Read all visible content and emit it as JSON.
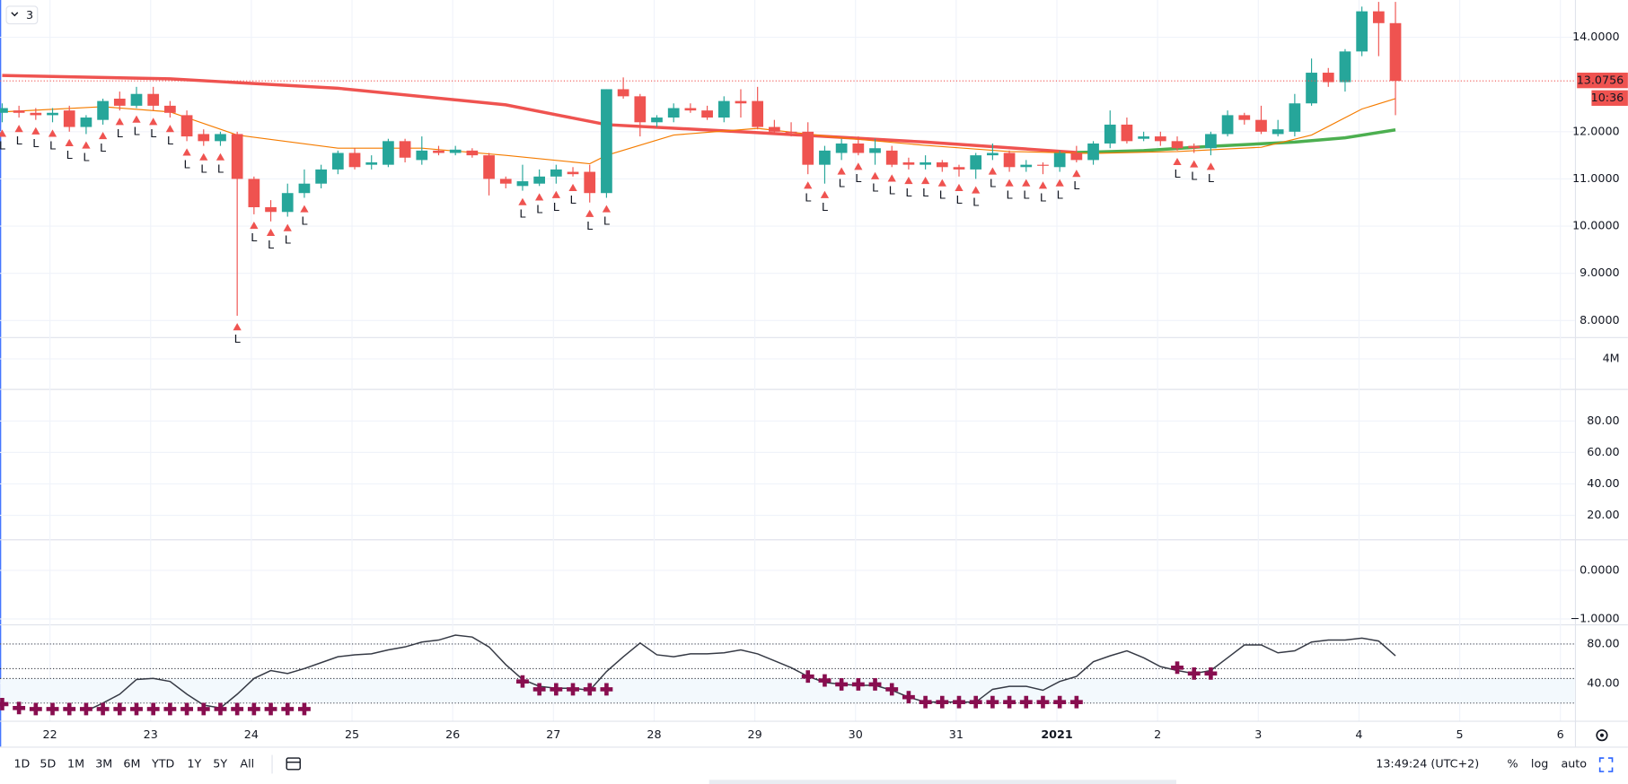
{
  "range_button": "3",
  "price_pane": {
    "ylim": [
      7.65,
      14.79
    ],
    "yticks": [
      {
        "value": 14,
        "label": "14.0000"
      },
      {
        "value": 12,
        "label": "12.0000"
      },
      {
        "value": 11,
        "label": "11.0000"
      },
      {
        "value": 10,
        "label": "10.0000"
      },
      {
        "value": 9,
        "label": "9.0000"
      },
      {
        "value": 8,
        "label": "8.0000"
      }
    ],
    "up_color": "#26a69a",
    "down_color": "#ef5350",
    "candles": {
      "open": [
        12.4,
        12.45,
        12.4,
        12.35,
        12.45,
        12.1,
        12.25,
        12.7,
        12.55,
        12.8,
        12.55,
        12.35,
        11.95,
        11.8,
        11.95,
        11.0,
        10.4,
        10.3,
        10.7,
        10.9,
        11.2,
        11.55,
        11.3,
        11.3,
        11.8,
        11.4,
        11.6,
        11.55,
        11.6,
        11.5,
        11.0,
        10.85,
        10.9,
        11.05,
        11.15,
        11.15,
        10.7,
        12.9,
        12.75,
        12.2,
        12.3,
        12.5,
        12.45,
        12.3,
        12.65,
        12.65,
        12.1,
        12.0,
        12.0,
        11.3,
        11.55,
        11.75,
        11.55,
        11.6,
        11.35,
        11.3,
        11.35,
        11.25,
        11.2,
        11.5,
        11.55,
        11.25,
        11.3,
        11.25,
        11.55,
        11.4,
        11.75,
        12.15,
        11.85,
        11.9,
        11.8,
        11.7,
        11.65,
        11.95,
        12.35,
        12.25,
        11.95,
        12.0,
        12.6,
        13.25,
        13.05,
        13.7,
        14.55,
        14.3
      ],
      "high": [
        12.6,
        12.55,
        12.5,
        12.5,
        12.55,
        12.35,
        12.7,
        12.85,
        12.95,
        12.95,
        12.65,
        12.45,
        12.05,
        12.0,
        12.0,
        11.05,
        10.55,
        10.9,
        11.2,
        11.3,
        11.6,
        11.65,
        11.5,
        11.85,
        11.85,
        11.9,
        11.7,
        11.7,
        11.65,
        11.55,
        11.05,
        11.3,
        11.2,
        11.3,
        11.25,
        11.3,
        12.9,
        13.15,
        12.8,
        12.35,
        12.6,
        12.6,
        12.55,
        12.75,
        12.9,
        12.95,
        12.25,
        12.2,
        12.2,
        11.7,
        11.85,
        11.9,
        11.85,
        11.7,
        11.45,
        11.5,
        11.4,
        11.3,
        11.55,
        11.75,
        11.6,
        11.4,
        11.35,
        11.6,
        11.7,
        11.8,
        12.45,
        12.3,
        12.0,
        12.0,
        11.9,
        11.75,
        12.0,
        12.45,
        12.4,
        12.55,
        12.25,
        12.8,
        13.55,
        13.35,
        13.75,
        14.65,
        14.75,
        14.75
      ],
      "low": [
        12.2,
        12.3,
        12.25,
        12.2,
        12.0,
        11.95,
        12.15,
        12.45,
        12.5,
        12.45,
        12.3,
        11.8,
        11.7,
        11.7,
        8.1,
        10.25,
        10.1,
        10.2,
        10.6,
        10.8,
        11.1,
        11.2,
        11.2,
        11.25,
        11.35,
        11.3,
        11.5,
        11.5,
        11.45,
        10.65,
        10.8,
        10.75,
        10.85,
        10.9,
        11.05,
        10.5,
        10.6,
        12.7,
        11.9,
        12.1,
        12.2,
        12.4,
        12.25,
        12.2,
        12.3,
        12.05,
        11.95,
        11.9,
        11.1,
        10.9,
        11.4,
        11.5,
        11.3,
        11.25,
        11.2,
        11.2,
        11.15,
        11.05,
        11.0,
        11.4,
        11.15,
        11.15,
        11.1,
        11.15,
        11.35,
        11.3,
        11.65,
        11.75,
        11.8,
        11.7,
        11.6,
        11.55,
        11.5,
        11.9,
        12.15,
        11.95,
        11.9,
        11.9,
        12.55,
        12.95,
        12.85,
        13.6,
        13.6,
        12.35
      ],
      "close": [
        12.5,
        12.4,
        12.35,
        12.4,
        12.1,
        12.3,
        12.65,
        12.55,
        12.8,
        12.55,
        12.4,
        11.9,
        11.8,
        11.95,
        11.0,
        10.4,
        10.3,
        10.7,
        10.9,
        11.2,
        11.55,
        11.25,
        11.35,
        11.8,
        11.45,
        11.6,
        11.55,
        11.62,
        11.5,
        11.0,
        10.9,
        10.95,
        11.05,
        11.2,
        11.1,
        10.7,
        12.9,
        12.75,
        12.2,
        12.3,
        12.5,
        12.45,
        12.3,
        12.65,
        12.6,
        12.1,
        12.0,
        11.98,
        11.3,
        11.6,
        11.75,
        11.55,
        11.65,
        11.3,
        11.3,
        11.35,
        11.25,
        11.2,
        11.5,
        11.55,
        11.25,
        11.3,
        11.28,
        11.55,
        11.4,
        11.75,
        12.15,
        11.8,
        11.9,
        11.8,
        11.65,
        11.65,
        11.95,
        12.35,
        12.25,
        12.0,
        12.05,
        12.6,
        13.25,
        13.05,
        13.7,
        14.55,
        14.3,
        13.0756
      ]
    },
    "ma_slow": [
      {
        "color": "#ef5350",
        "x": [
          0,
          10,
          20,
          30,
          36,
          45,
          55,
          64
        ],
        "values": [
          13.19,
          13.12,
          12.92,
          12.57,
          12.15,
          11.98,
          11.78,
          11.56
        ]
      },
      {
        "color": "#4caf50",
        "x": [
          64,
          68,
          72,
          77,
          80,
          83
        ],
        "values": [
          11.56,
          11.6,
          11.69,
          11.78,
          11.87,
          12.04
        ]
      }
    ],
    "ma_fast": {
      "color": "#f57c00",
      "x": [
        0,
        6,
        10,
        14,
        20,
        25,
        30,
        35,
        36,
        40,
        45,
        50,
        55,
        60,
        65,
        70,
        75,
        78,
        81,
        83
      ],
      "values": [
        12.42,
        12.53,
        12.42,
        11.93,
        11.65,
        11.65,
        11.5,
        11.32,
        11.5,
        11.93,
        12.07,
        11.87,
        11.71,
        11.58,
        11.54,
        11.58,
        11.67,
        11.93,
        12.48,
        12.7
      ]
    },
    "signals": [
      0,
      1,
      2,
      3,
      4,
      5,
      6,
      7,
      8,
      9,
      10,
      11,
      12,
      13,
      14,
      15,
      16,
      17,
      18,
      31,
      32,
      33,
      34,
      35,
      36,
      48,
      49,
      50,
      51,
      52,
      53,
      54,
      55,
      56,
      57,
      58,
      59,
      60,
      61,
      62,
      63,
      64,
      70,
      71,
      72
    ],
    "signal_label": "L",
    "signal_color": "#ef5350",
    "last_price": {
      "value": 13.0756,
      "label": "13.0756"
    },
    "countdown": "10:36"
  },
  "volume_pane": {
    "ylim": [
      0,
      6900000
    ],
    "yticks": [
      {
        "value": 4000000,
        "label": "4M"
      }
    ]
  },
  "pane_3": {
    "ylim": [
      4.8,
      100.4
    ],
    "yticks": [
      {
        "value": 80,
        "label": "80.00"
      },
      {
        "value": 60,
        "label": "60.00"
      },
      {
        "value": 40,
        "label": "40.00"
      },
      {
        "value": 20,
        "label": "20.00"
      }
    ]
  },
  "pane_4": {
    "ylim": [
      -1.11,
      0.64
    ],
    "yticks": [
      {
        "value": 0,
        "label": "0.0000"
      },
      {
        "value": -1,
        "label": "−1.0000"
      }
    ]
  },
  "oscillator_pane": {
    "ylim": [
      2.1,
      100
    ],
    "yticks": [
      {
        "value": 80,
        "label": "80.00"
      },
      {
        "value": 40,
        "label": "40.00"
      }
    ],
    "levels": [
      80,
      55,
      45,
      20
    ],
    "line": {
      "color": "#363a45",
      "values": [
        null,
        null,
        null,
        null,
        null,
        12,
        20,
        29,
        44,
        45,
        42,
        29,
        18,
        15,
        29,
        45,
        53,
        50,
        55,
        61,
        67,
        69,
        70,
        74,
        77,
        82,
        84,
        89,
        87,
        77,
        59,
        44,
        37,
        35,
        35,
        33,
        52,
        67,
        81,
        69,
        67,
        70,
        70,
        71,
        74,
        70,
        63,
        56,
        47,
        41,
        39,
        38,
        38,
        33,
        26,
        21,
        21,
        21,
        21,
        34,
        37,
        37,
        33,
        42,
        47,
        62,
        68,
        73,
        66,
        57,
        53,
        50,
        53,
        66,
        79,
        79,
        71,
        73,
        82,
        84,
        84,
        86,
        83,
        68
      ]
    },
    "markers": {
      "color": "#880e4f",
      "values": [
        19,
        15,
        14,
        14,
        14,
        14,
        14,
        14,
        14,
        14,
        14,
        14,
        14,
        14,
        14,
        14,
        14,
        14,
        14,
        null,
        null,
        null,
        null,
        null,
        null,
        null,
        null,
        null,
        null,
        null,
        null,
        42,
        34,
        34,
        34,
        34,
        34,
        null,
        null,
        null,
        null,
        null,
        null,
        null,
        null,
        null,
        null,
        null,
        47,
        43,
        39,
        39,
        39,
        34,
        26,
        21,
        21,
        21,
        21,
        21,
        21,
        21,
        21,
        21,
        21,
        null,
        null,
        null,
        null,
        null,
        56,
        50,
        50,
        null,
        null,
        null,
        null,
        null,
        null,
        null,
        null,
        null,
        null,
        null
      ]
    }
  },
  "time_axis": {
    "labels": [
      "22",
      "23",
      "24",
      "25",
      "26",
      "27",
      "28",
      "29",
      "30",
      "31",
      "2021",
      "2",
      "3",
      "4",
      "5",
      "6"
    ]
  },
  "bottom_toolbar": {
    "ranges": [
      "1D",
      "5D",
      "1M",
      "3M",
      "6M",
      "YTD",
      "1Y",
      "5Y",
      "All"
    ],
    "clock": "13:49:24 (UTC+2)",
    "scale_options": [
      "%",
      "log",
      "auto"
    ]
  }
}
